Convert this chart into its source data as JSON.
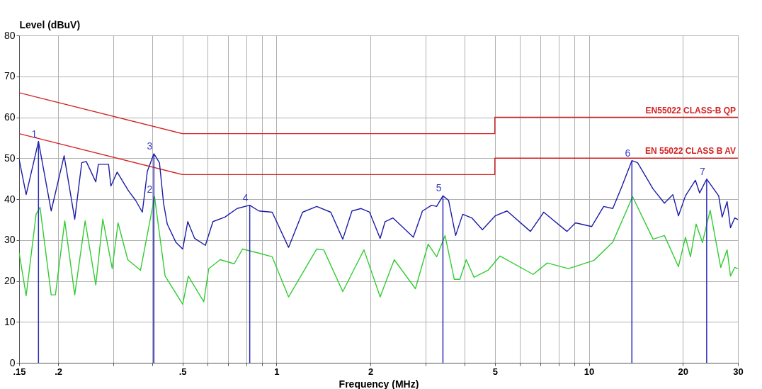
{
  "chart_data": {
    "type": "line",
    "xlabel": "Frequency (MHz)",
    "ylabel": "Level (dBuV)",
    "log": "x",
    "grid": true,
    "xlim": [
      0.15,
      30
    ],
    "ylim": [
      0,
      80
    ],
    "xticks": [
      {
        "value": 0.15,
        "label": ".15"
      },
      {
        "value": 0.2,
        "label": ".2"
      },
      {
        "value": 0.3,
        "label": null
      },
      {
        "value": 0.4,
        "label": null
      },
      {
        "value": 0.5,
        "label": ".5"
      },
      {
        "value": 0.6,
        "label": null
      },
      {
        "value": 0.7,
        "label": null
      },
      {
        "value": 0.8,
        "label": null
      },
      {
        "value": 0.9,
        "label": null
      },
      1,
      2,
      {
        "value": 3,
        "label": null
      },
      {
        "value": 4,
        "label": null
      },
      5,
      {
        "value": 6,
        "label": null
      },
      {
        "value": 7,
        "label": null
      },
      {
        "value": 8,
        "label": null
      },
      {
        "value": 9,
        "label": null
      },
      10,
      20,
      30
    ],
    "yticks": [
      0,
      10,
      20,
      30,
      40,
      50,
      60,
      70,
      80
    ],
    "series": [
      {
        "name": "EN55022 CLASS-B QP",
        "color": "#d42020",
        "x": [
          0.15,
          0.5,
          5,
          5,
          30
        ],
        "values": [
          66,
          56,
          56,
          60,
          60
        ]
      },
      {
        "name": "EN 55022 CLASS B AV",
        "color": "#d42020",
        "x": [
          0.15,
          0.5,
          5,
          5,
          30
        ],
        "values": [
          56,
          46,
          46,
          50,
          50
        ]
      },
      {
        "color": "#1c1ca8",
        "x": [
          0.15,
          0.158,
          0.173,
          0.19,
          0.209,
          0.226,
          0.238,
          0.246,
          0.264,
          0.269,
          0.29,
          0.295,
          0.309,
          0.336,
          0.354,
          0.372,
          0.386,
          0.405,
          0.422,
          0.435,
          0.447,
          0.476,
          0.501,
          0.52,
          0.547,
          0.592,
          0.626,
          0.684,
          0.748,
          0.821,
          0.878,
          0.969,
          1.093,
          1.212,
          1.345,
          1.492,
          1.63,
          1.744,
          1.866,
          1.986,
          2.147,
          2.227,
          2.358,
          2.742,
          2.933,
          3.138,
          3.255,
          3.41,
          3.555,
          3.745,
          3.945,
          4.22,
          4.562,
          5.01,
          5.472,
          6.5,
          7.17,
          8.51,
          9.06,
          10.21,
          11.15,
          11.93,
          12.77,
          13.73,
          14.32,
          16.05,
          17.45,
          18.57,
          19.35,
          20.38,
          21.93,
          22.62,
          23.83,
          26.03,
          26.71,
          27.7,
          28.4,
          29.3,
          30
        ],
        "values": [
          49.7,
          41.1,
          54.1,
          37.1,
          50.6,
          35.1,
          48.9,
          49.2,
          44.2,
          48.5,
          48.5,
          43.2,
          46.6,
          42.0,
          39.7,
          36.8,
          46.8,
          51.1,
          48.9,
          39.0,
          33.9,
          29.5,
          27.8,
          34.5,
          30.4,
          28.7,
          34.5,
          35.6,
          37.7,
          38.5,
          37.1,
          36.8,
          28.2,
          36.8,
          38.2,
          36.8,
          30.2,
          37.1,
          37.7,
          36.8,
          30.4,
          34.5,
          35.4,
          30.7,
          37.1,
          38.5,
          38.2,
          40.8,
          39.7,
          31.1,
          36.3,
          35.4,
          32.5,
          35.9,
          37.1,
          32.1,
          36.8,
          32.1,
          34.2,
          33.3,
          38.2,
          37.7,
          43.2,
          49.4,
          48.9,
          42.5,
          39.0,
          41.1,
          35.9,
          40.8,
          44.6,
          41.5,
          44.9,
          40.8,
          35.6,
          39.4,
          33.0,
          35.4,
          35.0
        ]
      },
      {
        "color": "#33cc33",
        "x": [
          0.15,
          0.158,
          0.17,
          0.175,
          0.19,
          0.196,
          0.21,
          0.226,
          0.244,
          0.264,
          0.278,
          0.298,
          0.311,
          0.334,
          0.367,
          0.407,
          0.44,
          0.501,
          0.522,
          0.585,
          0.607,
          0.66,
          0.732,
          0.779,
          0.878,
          0.969,
          1.093,
          1.345,
          1.417,
          1.63,
          1.905,
          2.147,
          2.382,
          2.784,
          3.059,
          3.255,
          3.464,
          3.707,
          3.864,
          4.049,
          4.287,
          4.755,
          5.196,
          6.633,
          7.36,
          8.6,
          10.37,
          11.93,
          13.8,
          16.05,
          17.45,
          19.35,
          20.38,
          21.15,
          22.04,
          23.1,
          24.45,
          26.43,
          27.7,
          28.4,
          29.3,
          30
        ],
        "values": [
          26.9,
          16.4,
          36.3,
          38.0,
          16.6,
          16.6,
          34.7,
          16.6,
          34.7,
          19.0,
          35.1,
          23.0,
          34.2,
          25.2,
          22.6,
          40.6,
          21.2,
          14.3,
          21.2,
          14.9,
          23.0,
          25.2,
          24.2,
          27.8,
          26.8,
          25.9,
          16.1,
          27.8,
          27.6,
          17.4,
          27.6,
          16.1,
          25.2,
          18.1,
          29.0,
          25.9,
          31.1,
          20.4,
          20.4,
          25.2,
          20.9,
          22.6,
          26.1,
          21.6,
          24.4,
          23.0,
          25.0,
          29.5,
          40.6,
          30.2,
          31.1,
          23.5,
          30.7,
          25.9,
          33.9,
          29.4,
          37.3,
          23.3,
          27.6,
          21.2,
          23.3,
          23.0
        ]
      }
    ],
    "annotations": [
      {
        "text": "1",
        "x": 0.173,
        "y": 54.1
      },
      {
        "text": "2",
        "x": 0.405,
        "y": 40.6
      },
      {
        "text": "3",
        "x": 0.405,
        "y": 51.1
      },
      {
        "text": "4",
        "x": 0.821,
        "y": 38.5
      },
      {
        "text": "5",
        "x": 3.41,
        "y": 40.8
      },
      {
        "text": "6",
        "x": 13.73,
        "y": 49.4
      },
      {
        "text": "7",
        "x": 23.83,
        "y": 44.9
      }
    ]
  }
}
